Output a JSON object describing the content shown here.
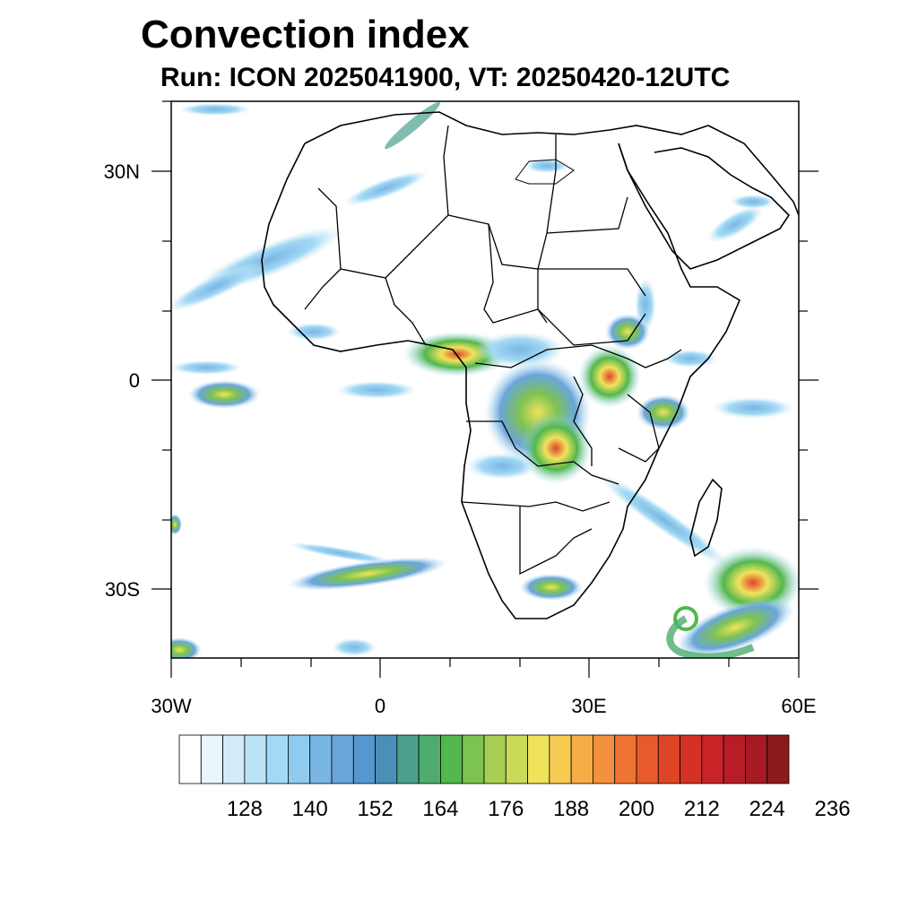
{
  "title": "Convection index",
  "subtitle": "Run: ICON 2025041900,  VT: 20250420-12UTC",
  "axes": {
    "lat_labels": [
      "30N",
      "0",
      "30S"
    ],
    "lon_labels": [
      "30W",
      "0",
      "30E",
      "60E"
    ]
  },
  "colorbar": {
    "labels": [
      "128",
      "140",
      "152",
      "164",
      "176",
      "188",
      "200",
      "212",
      "224",
      "236"
    ],
    "colors": [
      "#ffffff",
      "#eaf6fd",
      "#d2ecf9",
      "#bae3f7",
      "#a3d9f4",
      "#8fcbef",
      "#7ab6e4",
      "#6aa5da",
      "#5797cf",
      "#4a8fb6",
      "#4ba08e",
      "#4ead6e",
      "#52b74d",
      "#7dc352",
      "#a7ce55",
      "#cbd958",
      "#f0e35c",
      "#f7cc53",
      "#f6ad48",
      "#f3913e",
      "#ef7433",
      "#e75a2b",
      "#de4526",
      "#d53026",
      "#c92327",
      "#b81c27",
      "#a51a24",
      "#8c1a1c"
    ]
  }
}
